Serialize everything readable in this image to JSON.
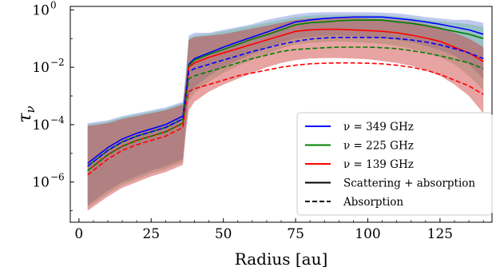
{
  "chart_data": {
    "type": "line",
    "xlabel": "Radius [au]",
    "ylabel": "τ",
    "ylabel_sub": "ν",
    "xlim": [
      -3,
      143
    ],
    "ylim_log10": [
      -7.4,
      0.12
    ],
    "y_scale": "log",
    "grid": false,
    "legend_position": "lower-right",
    "x_ticks": [
      {
        "value": 0,
        "label": "0"
      },
      {
        "value": 25,
        "label": "25"
      },
      {
        "value": 50,
        "label": "50"
      },
      {
        "value": 75,
        "label": "75"
      },
      {
        "value": 100,
        "label": "100"
      },
      {
        "value": 125,
        "label": "125"
      }
    ],
    "y_ticks": [
      {
        "exp": 0,
        "base": "10",
        "sup": "0"
      },
      {
        "exp": -2,
        "base": "10",
        "sup": "−2"
      },
      {
        "exp": -4,
        "base": "10",
        "sup": "−4"
      },
      {
        "exp": -6,
        "base": "10",
        "sup": "−6"
      }
    ],
    "radius": [
      3,
      10,
      15,
      20,
      25,
      30,
      36,
      37,
      38,
      40,
      45,
      50,
      55,
      60,
      65,
      70,
      75,
      80,
      85,
      90,
      95,
      100,
      105,
      110,
      115,
      120,
      125,
      130,
      135,
      140
    ],
    "series": [
      {
        "name": "ν = 349 GHz",
        "color": "#0000ff",
        "style": "solid",
        "log_tau": [
          -5.35,
          -4.8,
          -4.5,
          -4.3,
          -4.15,
          -4.0,
          -3.7,
          -2.9,
          -1.9,
          -1.7,
          -1.5,
          -1.3,
          -1.12,
          -0.95,
          -0.78,
          -0.6,
          -0.42,
          -0.35,
          -0.3,
          -0.27,
          -0.25,
          -0.25,
          -0.25,
          -0.3,
          -0.35,
          -0.42,
          -0.5,
          -0.6,
          -0.7,
          -0.85
        ]
      },
      {
        "name": "ν = 225 GHz",
        "color": "#008000",
        "style": "solid",
        "log_tau": [
          -5.45,
          -4.9,
          -4.6,
          -4.4,
          -4.25,
          -4.1,
          -3.8,
          -3.0,
          -1.95,
          -1.75,
          -1.55,
          -1.38,
          -1.2,
          -1.02,
          -0.87,
          -0.7,
          -0.52,
          -0.45,
          -0.42,
          -0.38,
          -0.36,
          -0.36,
          -0.36,
          -0.42,
          -0.47,
          -0.55,
          -0.65,
          -0.75,
          -0.85,
          -1.0
        ]
      },
      {
        "name": "ν = 139 GHz",
        "color": "#ff0000",
        "style": "solid",
        "log_tau": [
          -5.6,
          -5.05,
          -4.75,
          -4.55,
          -4.4,
          -4.25,
          -3.95,
          -3.1,
          -2.0,
          -1.85,
          -1.65,
          -1.5,
          -1.35,
          -1.2,
          -1.05,
          -0.9,
          -0.75,
          -0.7,
          -0.68,
          -0.68,
          -0.7,
          -0.72,
          -0.75,
          -0.8,
          -0.88,
          -0.98,
          -1.1,
          -1.3,
          -1.5,
          -1.8
        ]
      },
      {
        "name": "ν = 349 GHz absorption",
        "color": "#0000ff",
        "style": "dashed",
        "log_tau": [
          -5.45,
          -4.9,
          -4.6,
          -4.4,
          -4.25,
          -4.1,
          -3.8,
          -3.0,
          -2.15,
          -2.05,
          -1.9,
          -1.75,
          -1.6,
          -1.45,
          -1.33,
          -1.2,
          -1.1,
          -1.02,
          -0.98,
          -0.96,
          -0.96,
          -0.96,
          -0.97,
          -1.0,
          -1.05,
          -1.12,
          -1.22,
          -1.35,
          -1.5,
          -1.7
        ]
      },
      {
        "name": "ν = 225 GHz absorption",
        "color": "#008000",
        "style": "dashed",
        "log_tau": [
          -5.6,
          -5.05,
          -4.75,
          -4.55,
          -4.4,
          -4.25,
          -3.95,
          -3.15,
          -2.4,
          -2.3,
          -2.15,
          -2.0,
          -1.85,
          -1.7,
          -1.58,
          -1.45,
          -1.38,
          -1.35,
          -1.32,
          -1.3,
          -1.3,
          -1.3,
          -1.32,
          -1.35,
          -1.42,
          -1.5,
          -1.6,
          -1.72,
          -1.85,
          -2.05
        ]
      },
      {
        "name": "ν = 139 GHz absorption",
        "color": "#ff0000",
        "style": "dashed",
        "log_tau": [
          -5.75,
          -5.2,
          -4.9,
          -4.7,
          -4.55,
          -4.4,
          -4.1,
          -3.3,
          -2.85,
          -2.75,
          -2.6,
          -2.45,
          -2.3,
          -2.2,
          -2.1,
          -2.0,
          -1.93,
          -1.88,
          -1.86,
          -1.85,
          -1.85,
          -1.86,
          -1.88,
          -1.93,
          -2.0,
          -2.1,
          -2.25,
          -2.45,
          -2.65,
          -2.95
        ]
      }
    ],
    "bands": [
      {
        "name": "ν = 349 GHz band",
        "color": "#4466cc",
        "opacity": 0.35,
        "upper": [
          -3.95,
          -3.85,
          -3.7,
          -3.6,
          -3.5,
          -3.4,
          -3.2,
          -2.2,
          -0.9,
          -0.8,
          -0.8,
          -0.7,
          -0.6,
          -0.5,
          -0.35,
          -0.25,
          -0.15,
          -0.1,
          -0.08,
          -0.08,
          -0.08,
          -0.08,
          -0.1,
          -0.12,
          -0.18,
          -0.25,
          -0.3,
          -0.35,
          -0.35,
          -0.45
        ],
        "lower": [
          -6.8,
          -6.3,
          -6.0,
          -5.8,
          -5.6,
          -5.45,
          -5.2,
          -4.0,
          -3.0,
          -2.7,
          -2.3,
          -2.0,
          -1.75,
          -1.55,
          -1.35,
          -1.15,
          -1.0,
          -0.95,
          -0.92,
          -0.9,
          -0.92,
          -0.95,
          -0.98,
          -1.05,
          -1.12,
          -1.25,
          -1.4,
          -1.6,
          -1.9,
          -2.4
        ]
      },
      {
        "name": "ν = 225 GHz band",
        "color": "#44aa66",
        "opacity": 0.3,
        "upper": [
          -4.0,
          -3.9,
          -3.75,
          -3.65,
          -3.55,
          -3.45,
          -3.25,
          -2.3,
          -1.0,
          -0.9,
          -0.85,
          -0.75,
          -0.65,
          -0.55,
          -0.45,
          -0.35,
          -0.25,
          -0.2,
          -0.18,
          -0.18,
          -0.18,
          -0.18,
          -0.2,
          -0.22,
          -0.28,
          -0.35,
          -0.4,
          -0.45,
          -0.5,
          -0.6
        ],
        "lower": [
          -6.9,
          -6.4,
          -6.1,
          -5.9,
          -5.7,
          -5.55,
          -5.3,
          -4.1,
          -3.2,
          -2.9,
          -2.5,
          -2.2,
          -1.95,
          -1.75,
          -1.55,
          -1.35,
          -1.2,
          -1.15,
          -1.12,
          -1.1,
          -1.12,
          -1.15,
          -1.18,
          -1.25,
          -1.35,
          -1.5,
          -1.65,
          -1.9,
          -2.3,
          -2.8
        ]
      },
      {
        "name": "ν = 139 GHz band",
        "color": "#cc3333",
        "opacity": 0.45,
        "upper": [
          -4.05,
          -3.95,
          -3.8,
          -3.7,
          -3.6,
          -3.5,
          -3.3,
          -2.4,
          -1.05,
          -0.95,
          -0.9,
          -0.85,
          -0.75,
          -0.65,
          -0.55,
          -0.45,
          -0.35,
          -0.3,
          -0.28,
          -0.28,
          -0.28,
          -0.3,
          -0.32,
          -0.35,
          -0.4,
          -0.5,
          -0.6,
          -0.8,
          -1.0,
          -1.3
        ],
        "lower": [
          -7.0,
          -6.5,
          -6.2,
          -6.0,
          -5.8,
          -5.65,
          -5.4,
          -4.3,
          -3.5,
          -3.2,
          -2.85,
          -2.6,
          -2.4,
          -2.2,
          -2.0,
          -1.85,
          -1.75,
          -1.7,
          -1.68,
          -1.68,
          -1.7,
          -1.72,
          -1.78,
          -1.85,
          -1.95,
          -2.1,
          -2.3,
          -2.6,
          -3.0,
          -3.6
        ]
      }
    ],
    "legend": {
      "entries": [
        {
          "label": "ν = 349 GHz",
          "color": "#0000ff",
          "style": "solid"
        },
        {
          "label": "ν = 225 GHz",
          "color": "#008000",
          "style": "solid"
        },
        {
          "label": "ν = 139 GHz",
          "color": "#ff0000",
          "style": "solid"
        },
        {
          "label": "Scattering + absorption",
          "color": "#000000",
          "style": "solid"
        },
        {
          "label": "Absorption",
          "color": "#000000",
          "style": "dashed"
        }
      ]
    }
  }
}
